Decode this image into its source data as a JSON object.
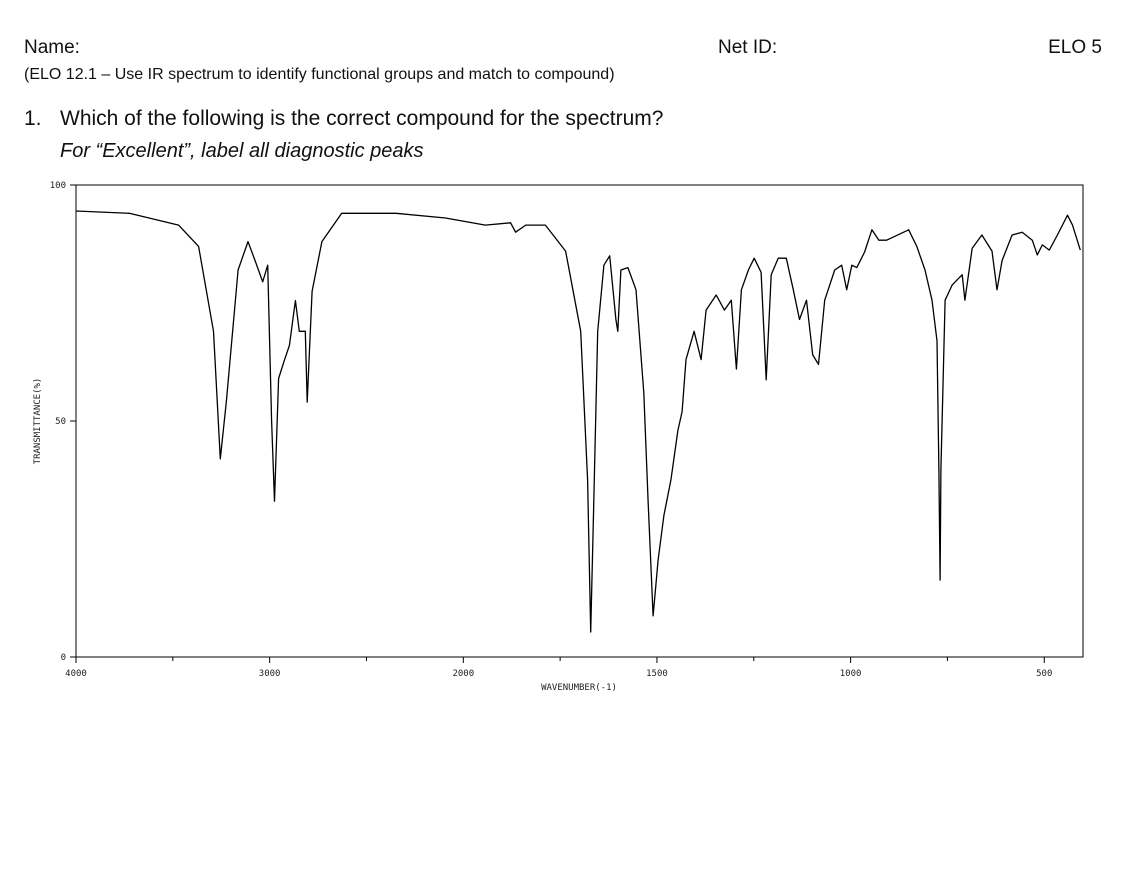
{
  "header": {
    "name_label": "Name:",
    "netid_label": "Net ID:",
    "elo": "ELO 5",
    "objective": "(ELO 12.1 – Use IR spectrum to identify functional groups and match to compound)"
  },
  "question": {
    "number": "1.",
    "text": "Which of the following is the correct compound for the spectrum?",
    "instruction": "For “Excellent”, label all diagnostic peaks"
  },
  "chart_data": {
    "type": "line",
    "xlabel": "WAVENUMBER(-1)",
    "ylabel": "TRANSMITTANCE(%)",
    "xlim": [
      4000,
      400
    ],
    "ylim": [
      0,
      100
    ],
    "x_scale": {
      "break": 2000,
      "factor": 2
    },
    "xticks": [
      4000,
      3000,
      2000,
      1500,
      1000,
      500
    ],
    "xminorticks": [
      3500,
      2500,
      1750,
      1250,
      750
    ],
    "yticks": [
      0,
      50,
      100
    ],
    "grid": false,
    "color": "#000000",
    "x": [
      4000,
      3725,
      3470,
      3367,
      3290,
      3255,
      3224,
      3163,
      3112,
      3071,
      3036,
      3010,
      2990,
      2975,
      2954,
      2923,
      2898,
      2867,
      2847,
      2816,
      2806,
      2781,
      2730,
      2628,
      2347,
      2092,
      1943,
      1878,
      1865,
      1839,
      1788,
      1736,
      1697,
      1679,
      1671,
      1663,
      1653,
      1637,
      1622,
      1606,
      1601,
      1593,
      1575,
      1554,
      1534,
      1523,
      1510,
      1497,
      1482,
      1464,
      1446,
      1435,
      1425,
      1404,
      1386,
      1373,
      1347,
      1326,
      1308,
      1295,
      1282,
      1264,
      1249,
      1231,
      1218,
      1205,
      1187,
      1166,
      1148,
      1132,
      1114,
      1098,
      1083,
      1067,
      1041,
      1023,
      1010,
      997,
      984,
      964,
      945,
      927,
      907,
      850,
      829,
      808,
      790,
      777,
      772,
      769,
      767,
      756,
      738,
      712,
      705,
      686,
      661,
      635,
      622,
      609,
      583,
      557,
      531,
      518,
      505,
      487,
      466,
      440,
      427,
      407
    ],
    "values": [
      94.5,
      94,
      91.5,
      87,
      69,
      42,
      54,
      82,
      88,
      83.5,
      79.5,
      83,
      50,
      33,
      59,
      63,
      66,
      75.5,
      69,
      69,
      54,
      77.5,
      88,
      94,
      94,
      93,
      91.5,
      92,
      90,
      91.5,
      91.5,
      86,
      69,
      37.5,
      5.3,
      33,
      69,
      83,
      85,
      71.5,
      69,
      82,
      82.5,
      77.8,
      56,
      33,
      8.7,
      20.5,
      30,
      37.5,
      48,
      52,
      63,
      69,
      63,
      73.5,
      76.7,
      73.5,
      75.6,
      61,
      77.8,
      82,
      84.5,
      81.5,
      58.7,
      81,
      84.5,
      84.5,
      77.8,
      71.5,
      75.6,
      64,
      62,
      75.6,
      82,
      83,
      77.8,
      83,
      82.5,
      85.8,
      90.5,
      88.3,
      88.3,
      90.5,
      87,
      82,
      75.6,
      67,
      39.6,
      16.3,
      39.6,
      75.6,
      78.8,
      81,
      75.6,
      86.6,
      89.4,
      86,
      77.8,
      84,
      89.4,
      90,
      88.3,
      85.2,
      87.3,
      86.2,
      89.4,
      93.6,
      91.5,
      86.2
    ]
  }
}
